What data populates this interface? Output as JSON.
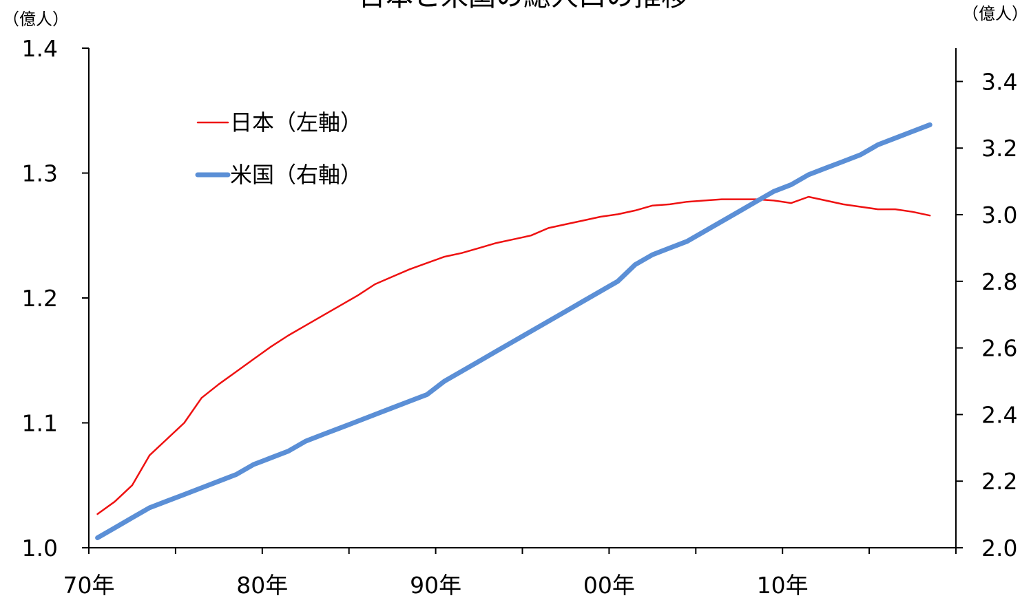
{
  "chart_data": {
    "type": "line",
    "title": "日本と米国の総人口の推移",
    "left_axis_unit": "（億人）",
    "right_axis_unit": "（億人）",
    "x_categories": [
      "70年",
      "80年",
      "90年",
      "00年",
      "10年"
    ],
    "x_range": [
      1970,
      2020
    ],
    "y_left_range": [
      1.0,
      1.4
    ],
    "y_left_ticks": [
      "1.0",
      "1.1",
      "1.2",
      "1.3",
      "1.4"
    ],
    "y_right_range": [
      2.0,
      3.5
    ],
    "y_right_ticks": [
      "2.0",
      "2.2",
      "2.4",
      "2.6",
      "2.8",
      "3.0",
      "3.2",
      "3.4"
    ],
    "legend_position": "top-left",
    "series": [
      {
        "name": "日本（左軸）",
        "axis": "left",
        "color": "#ee1111",
        "x": [
          1970,
          1971,
          1972,
          1973,
          1974,
          1975,
          1976,
          1977,
          1978,
          1979,
          1980,
          1981,
          1982,
          1983,
          1984,
          1985,
          1986,
          1987,
          1988,
          1989,
          1990,
          1991,
          1992,
          1993,
          1994,
          1995,
          1996,
          1997,
          1998,
          1999,
          2000,
          2001,
          2002,
          2003,
          2004,
          2005,
          2006,
          2007,
          2008,
          2009,
          2010,
          2011,
          2012,
          2013,
          2014,
          2015,
          2016,
          2017,
          2018
        ],
        "values": [
          1.027,
          1.037,
          1.05,
          1.074,
          1.087,
          1.1,
          1.12,
          1.131,
          1.141,
          1.151,
          1.161,
          1.17,
          1.178,
          1.186,
          1.194,
          1.202,
          1.211,
          1.217,
          1.223,
          1.228,
          1.233,
          1.236,
          1.24,
          1.244,
          1.247,
          1.25,
          1.256,
          1.259,
          1.262,
          1.265,
          1.267,
          1.27,
          1.274,
          1.275,
          1.277,
          1.278,
          1.279,
          1.279,
          1.279,
          1.278,
          1.276,
          1.281,
          1.278,
          1.275,
          1.273,
          1.271,
          1.271,
          1.269,
          1.266
        ]
      },
      {
        "name": "米国（右軸）",
        "axis": "right",
        "color": "#5b8fd6",
        "x": [
          1970,
          1971,
          1972,
          1973,
          1974,
          1975,
          1976,
          1977,
          1978,
          1979,
          1980,
          1981,
          1982,
          1983,
          1984,
          1985,
          1986,
          1987,
          1988,
          1989,
          1990,
          1991,
          1992,
          1993,
          1994,
          1995,
          1996,
          1997,
          1998,
          1999,
          2000,
          2001,
          2002,
          2003,
          2004,
          2005,
          2006,
          2007,
          2008,
          2009,
          2010,
          2011,
          2012,
          2013,
          2014,
          2015,
          2016,
          2017,
          2018
        ],
        "values": [
          2.03,
          2.06,
          2.09,
          2.12,
          2.14,
          2.16,
          2.18,
          2.2,
          2.22,
          2.25,
          2.27,
          2.29,
          2.32,
          2.34,
          2.36,
          2.38,
          2.4,
          2.42,
          2.44,
          2.46,
          2.5,
          2.53,
          2.56,
          2.59,
          2.62,
          2.65,
          2.68,
          2.71,
          2.74,
          2.77,
          2.8,
          2.85,
          2.88,
          2.9,
          2.92,
          2.95,
          2.98,
          3.01,
          3.04,
          3.07,
          3.09,
          3.12,
          3.14,
          3.16,
          3.18,
          3.21,
          3.23,
          3.25,
          3.27
        ]
      }
    ]
  }
}
